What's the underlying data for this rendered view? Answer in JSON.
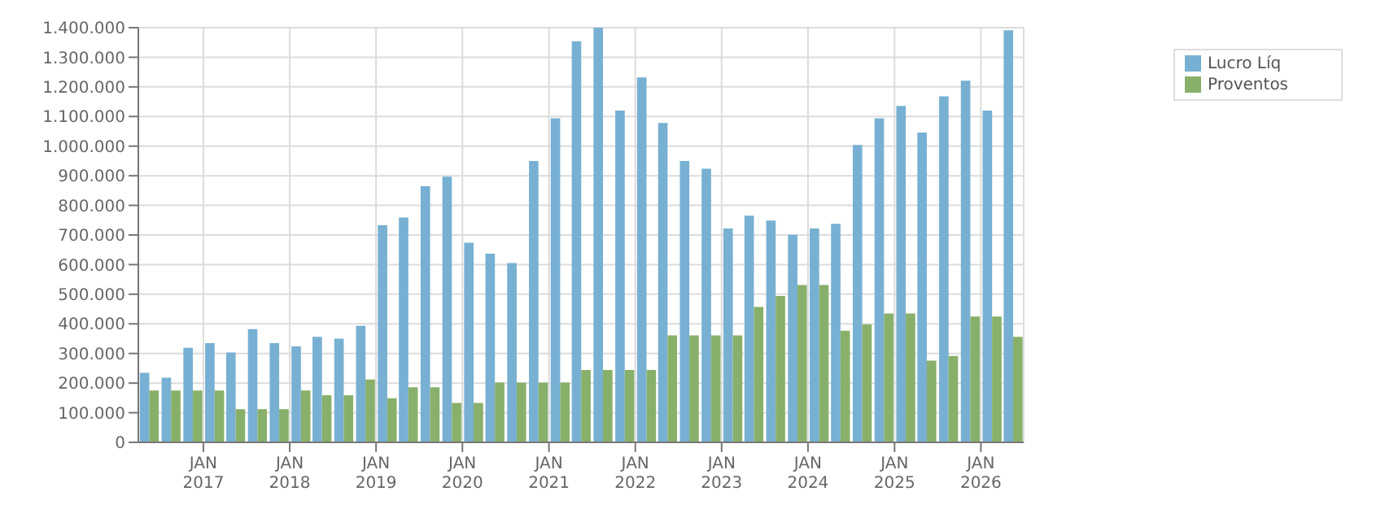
{
  "chart_data": {
    "type": "bar",
    "x": [
      "2016-05-15",
      "2016-08-15",
      "2016-11-15",
      "2017-02-15",
      "2017-05-15",
      "2017-08-15",
      "2017-11-15",
      "2018-02-15",
      "2018-05-15",
      "2018-08-15",
      "2018-11-15",
      "2019-02-15",
      "2019-05-15",
      "2019-08-15",
      "2019-11-15",
      "2020-02-15",
      "2020-05-15",
      "2020-08-15",
      "2020-11-15",
      "2021-02-15",
      "2021-05-15",
      "2021-08-15",
      "2021-11-15",
      "2022-02-15",
      "2022-05-15",
      "2022-08-15",
      "2022-11-15",
      "2023-02-15",
      "2023-05-15",
      "2023-08-15",
      "2023-11-15",
      "2024-02-15",
      "2024-05-15",
      "2024-08-15",
      "2024-11-15",
      "2025-02-15",
      "2025-05-15",
      "2025-08-15",
      "2025-11-15",
      "2026-02-15",
      "2026-05-15"
    ],
    "series": [
      {
        "name": "Lucro Líq",
        "color": "#77b0d2",
        "values": [
          235000,
          218000,
          319000,
          335000,
          303000,
          382000,
          335000,
          324000,
          356000,
          350000,
          393000,
          733000,
          759000,
          865000,
          897000,
          674000,
          637000,
          605000,
          950000,
          1094000,
          1354000,
          1400000,
          1120000,
          1232000,
          1078000,
          950000,
          924000,
          722000,
          765000,
          749000,
          701000,
          722000,
          738000,
          1004000,
          1094000,
          1136000,
          1046000,
          1168000,
          1221000,
          1120000,
          1391000
        ]
      },
      {
        "name": "Proventos",
        "color": "#88b06a",
        "values": [
          175000,
          175000,
          175000,
          175000,
          112000,
          112000,
          112000,
          175000,
          159000,
          159000,
          212000,
          149000,
          186000,
          186000,
          133000,
          133000,
          202000,
          202000,
          202000,
          202000,
          244000,
          244000,
          244000,
          244000,
          361000,
          361000,
          361000,
          361000,
          457000,
          494000,
          531000,
          531000,
          377000,
          398000,
          435000,
          435000,
          276000,
          292000,
          425000,
          425000,
          356000
        ]
      }
    ],
    "xlim": [
      "2016-04",
      "2026-07"
    ],
    "xticks": [
      {
        "value": "2017-01",
        "label": "JAN 2017"
      },
      {
        "value": "2018-01",
        "label": "JAN 2018"
      },
      {
        "value": "2019-01",
        "label": "JAN 2019"
      },
      {
        "value": "2020-01",
        "label": "JAN 2020"
      },
      {
        "value": "2021-01",
        "label": "JAN 2021"
      },
      {
        "value": "2022-01",
        "label": "JAN 2022"
      },
      {
        "value": "2023-01",
        "label": "JAN 2023"
      },
      {
        "value": "2024-01",
        "label": "JAN 2024"
      },
      {
        "value": "2025-01",
        "label": "JAN 2025"
      },
      {
        "value": "2026-01",
        "label": "JAN 2026"
      }
    ],
    "ylim": [
      0,
      1400000
    ],
    "yticks": [
      0,
      {
        "value": 100000,
        "label": "100.000"
      },
      {
        "value": 200000,
        "label": "200.000"
      },
      {
        "value": 300000,
        "label": "300.000"
      },
      {
        "value": 400000,
        "label": "400.000"
      },
      {
        "value": 500000,
        "label": "500.000"
      },
      {
        "value": 600000,
        "label": "600.000"
      },
      {
        "value": 700000,
        "label": "700.000"
      },
      {
        "value": 800000,
        "label": "800.000"
      },
      {
        "value": 900000,
        "label": "900.000"
      },
      {
        "value": 1000000,
        "label": "1.000.000"
      },
      {
        "value": 1100000,
        "label": "1.100.000"
      },
      {
        "value": 1200000,
        "label": "1.200.000"
      },
      {
        "value": 1300000,
        "label": "1.300.000"
      },
      {
        "value": 1400000,
        "label": "1.400.000"
      }
    ],
    "grid": true,
    "legend": "top right"
  }
}
